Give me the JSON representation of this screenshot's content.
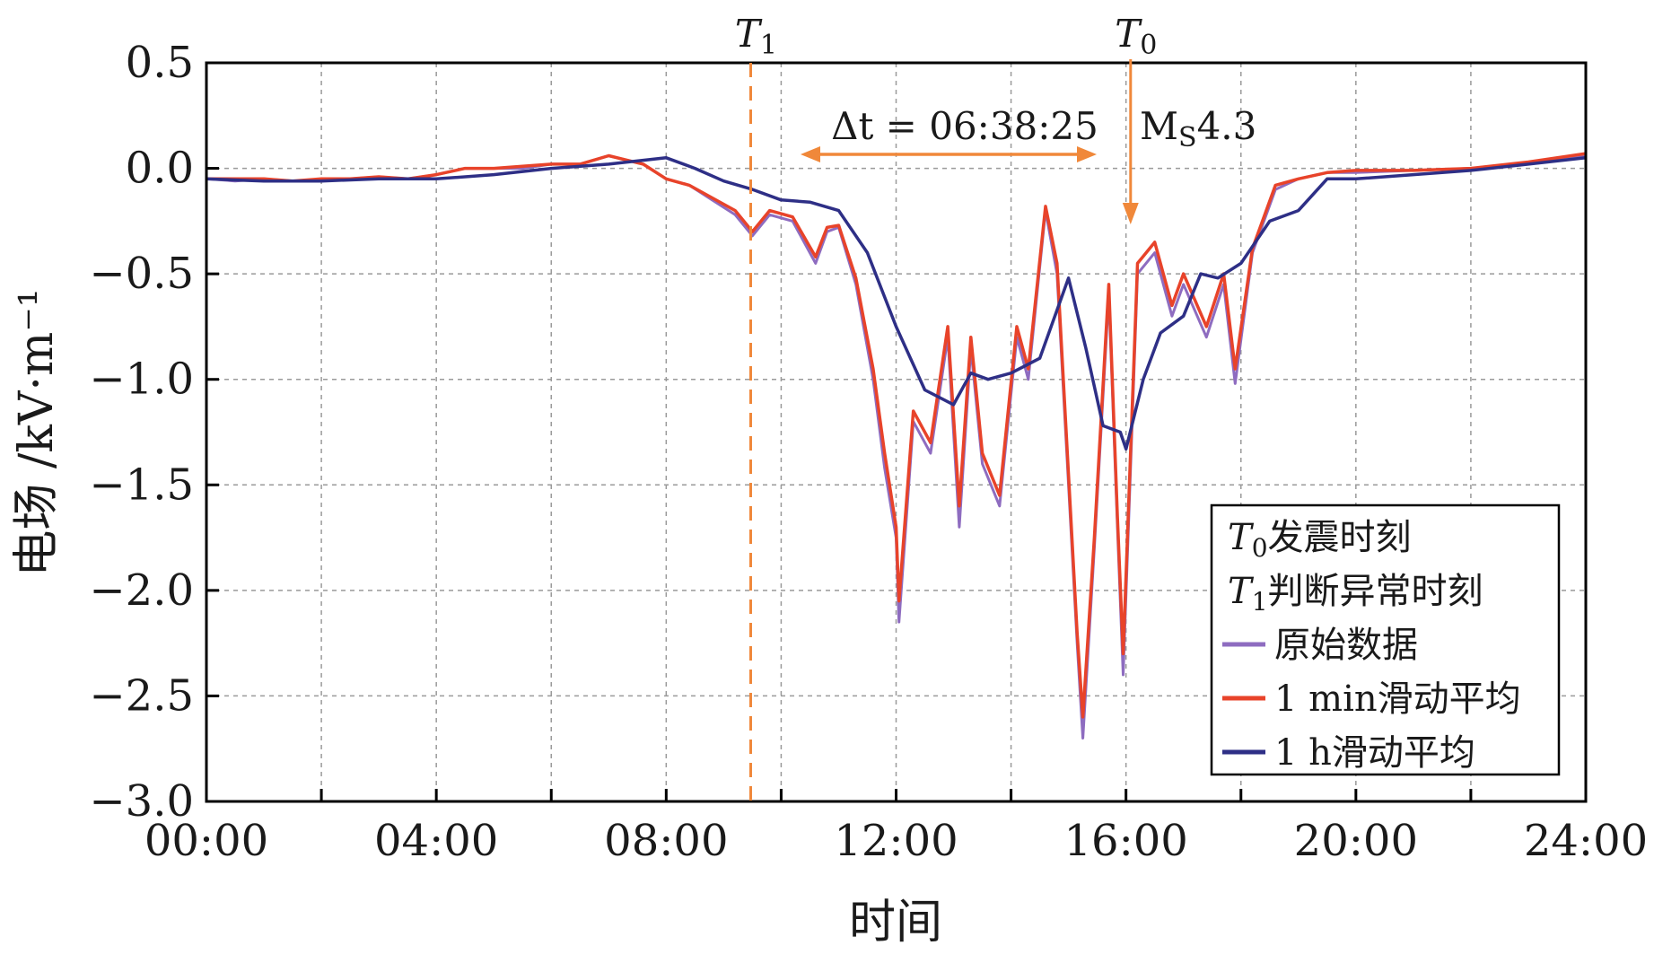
{
  "chart_data": {
    "type": "line",
    "title": "",
    "xlabel": "时间",
    "ylabel": "电场 /kV·m⁻¹",
    "xlim": [
      0,
      24
    ],
    "ylim": [
      -3.0,
      0.5
    ],
    "x_tick_labels": [
      "00:00",
      "04:00",
      "08:00",
      "12:00",
      "16:00",
      "20:00",
      "24:00"
    ],
    "y_tick_labels": [
      "0.5",
      "0.0",
      "−0.5",
      "−1.0",
      "−1.5",
      "−2.0",
      "−2.5",
      "−3.0"
    ],
    "y_ticks": [
      0.5,
      0.0,
      -0.5,
      -1.0,
      -1.5,
      -2.0,
      -2.5,
      -3.0
    ],
    "grid": true,
    "legend_position": "bottom-right",
    "colors": {
      "raw": "#8e6cc0",
      "min1": "#e8432a",
      "hour1": "#2e2f86",
      "marker": "#f0883a"
    },
    "markers": {
      "t1": {
        "x": 9.47,
        "label": "T",
        "sub": "1"
      },
      "t0": {
        "x": 16.08,
        "label": "T",
        "sub": "0"
      }
    },
    "annotations": {
      "delta_t": "Δt = 06:38:25",
      "magnitude": "M",
      "magnitude_sub": "S",
      "magnitude_value": "4.3"
    },
    "legend": {
      "t0_symbol": "T",
      "t0_sub": "0",
      "t0_text": "发震时刻",
      "t1_symbol": "T",
      "t1_sub": "1",
      "t1_text": "判断异常时刻"
    },
    "series": [
      {
        "name": "原始数据",
        "x": [
          0,
          0.5,
          1,
          1.5,
          2,
          2.5,
          3,
          3.5,
          4,
          4.5,
          5,
          5.5,
          6,
          6.5,
          7,
          7.3,
          7.6,
          8,
          8.4,
          8.8,
          9.2,
          9.5,
          9.8,
          10.2,
          10.6,
          10.8,
          11,
          11.3,
          11.6,
          11.8,
          12.0,
          12.05,
          12.3,
          12.6,
          12.9,
          13.1,
          13.3,
          13.5,
          13.8,
          14.1,
          14.3,
          14.6,
          14.8,
          15.0,
          15.15,
          15.25,
          15.45,
          15.7,
          15.85,
          15.95,
          16.2,
          16.5,
          16.8,
          17.0,
          17.4,
          17.7,
          17.9,
          18.2,
          18.6,
          19.0,
          19.5,
          20,
          21,
          22,
          23,
          24
        ],
        "values": [
          -0.05,
          -0.06,
          -0.05,
          -0.06,
          -0.06,
          -0.05,
          -0.04,
          -0.05,
          -0.03,
          0.0,
          0.0,
          0.0,
          0.02,
          0.02,
          0.06,
          0.04,
          0.02,
          -0.05,
          -0.08,
          -0.15,
          -0.22,
          -0.32,
          -0.22,
          -0.25,
          -0.45,
          -0.3,
          -0.28,
          -0.55,
          -1.0,
          -1.42,
          -1.75,
          -2.15,
          -1.2,
          -1.35,
          -0.8,
          -1.7,
          -0.85,
          -1.4,
          -1.6,
          -0.8,
          -1.0,
          -0.2,
          -0.5,
          -1.5,
          -2.25,
          -2.7,
          -1.8,
          -0.6,
          -1.7,
          -2.4,
          -0.5,
          -0.4,
          -0.7,
          -0.55,
          -0.8,
          -0.55,
          -1.02,
          -0.4,
          -0.1,
          -0.05,
          -0.02,
          -0.02,
          -0.01,
          0.0,
          0.02,
          0.06
        ]
      },
      {
        "name": "1 min滑动平均",
        "x": [
          0,
          0.5,
          1,
          1.5,
          2,
          2.5,
          3,
          3.5,
          4,
          4.5,
          5,
          5.5,
          6,
          6.5,
          7,
          7.3,
          7.6,
          8,
          8.4,
          8.8,
          9.2,
          9.5,
          9.8,
          10.2,
          10.6,
          10.8,
          11,
          11.3,
          11.6,
          11.8,
          12.0,
          12.05,
          12.3,
          12.6,
          12.9,
          13.1,
          13.3,
          13.5,
          13.8,
          14.1,
          14.3,
          14.6,
          14.8,
          15.0,
          15.15,
          15.25,
          15.45,
          15.7,
          15.85,
          15.95,
          16.2,
          16.5,
          16.8,
          17.0,
          17.4,
          17.7,
          17.9,
          18.2,
          18.6,
          19.0,
          19.5,
          20,
          21,
          22,
          23,
          24
        ],
        "values": [
          -0.05,
          -0.05,
          -0.05,
          -0.06,
          -0.05,
          -0.05,
          -0.04,
          -0.05,
          -0.03,
          0.0,
          0.0,
          0.01,
          0.02,
          0.02,
          0.06,
          0.04,
          0.02,
          -0.05,
          -0.08,
          -0.14,
          -0.2,
          -0.3,
          -0.2,
          -0.23,
          -0.42,
          -0.28,
          -0.27,
          -0.52,
          -0.95,
          -1.35,
          -1.7,
          -2.05,
          -1.15,
          -1.3,
          -0.75,
          -1.6,
          -0.8,
          -1.35,
          -1.55,
          -0.75,
          -0.95,
          -0.18,
          -0.45,
          -1.45,
          -2.2,
          -2.6,
          -1.75,
          -0.55,
          -1.65,
          -2.3,
          -0.45,
          -0.35,
          -0.65,
          -0.5,
          -0.75,
          -0.5,
          -0.95,
          -0.38,
          -0.08,
          -0.05,
          -0.02,
          -0.01,
          -0.01,
          0.0,
          0.03,
          0.07
        ]
      },
      {
        "name": "1 h滑动平均",
        "x": [
          0,
          1,
          2,
          3,
          4,
          5,
          6,
          7,
          8,
          8.5,
          9,
          9.5,
          10,
          10.5,
          11,
          11.5,
          12,
          12.5,
          13,
          13.3,
          13.6,
          14,
          14.5,
          15,
          15.3,
          15.6,
          15.9,
          16.0,
          16.3,
          16.6,
          17,
          17.3,
          17.6,
          18,
          18.5,
          19,
          19.5,
          20,
          21,
          22,
          23,
          24
        ],
        "values": [
          -0.05,
          -0.06,
          -0.06,
          -0.05,
          -0.05,
          -0.03,
          0.0,
          0.02,
          0.05,
          0.0,
          -0.06,
          -0.1,
          -0.15,
          -0.16,
          -0.2,
          -0.4,
          -0.75,
          -1.05,
          -1.12,
          -0.97,
          -1.0,
          -0.97,
          -0.9,
          -0.52,
          -0.85,
          -1.22,
          -1.25,
          -1.33,
          -1.0,
          -0.78,
          -0.7,
          -0.5,
          -0.52,
          -0.45,
          -0.25,
          -0.2,
          -0.05,
          -0.05,
          -0.03,
          -0.01,
          0.02,
          0.05
        ]
      }
    ]
  }
}
